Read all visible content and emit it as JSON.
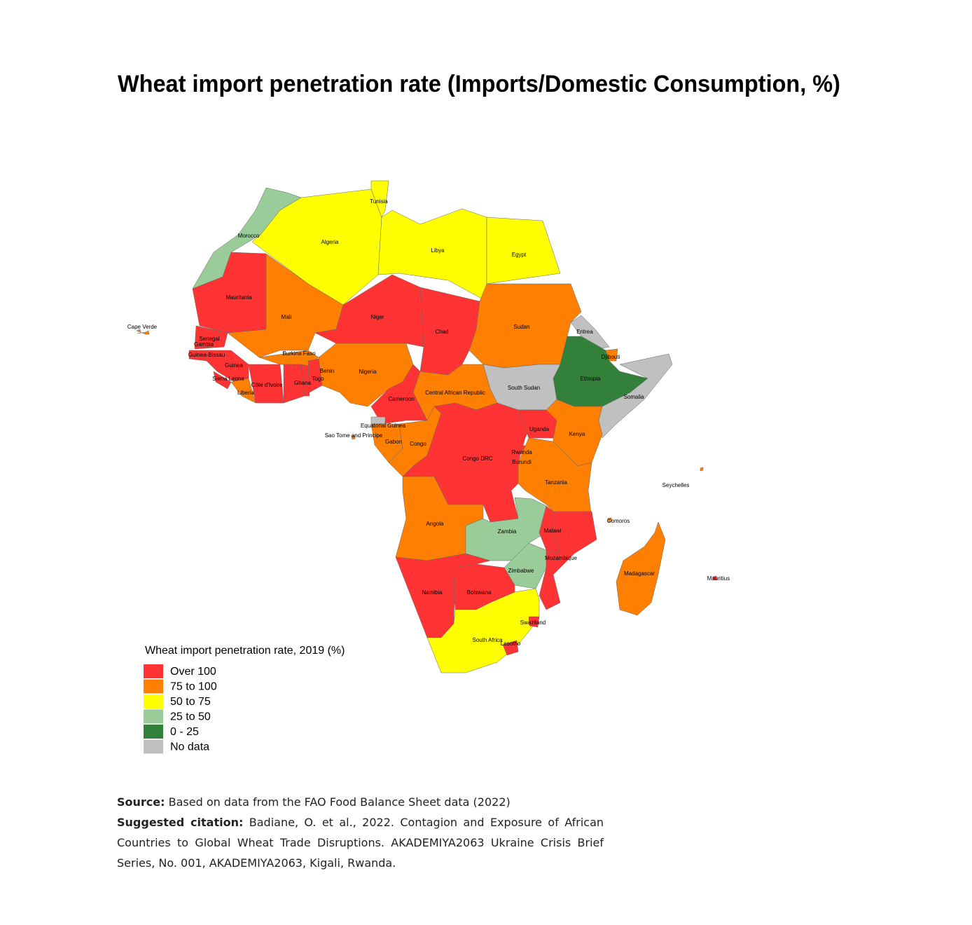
{
  "title": "Wheat import penetration rate (Imports/Domestic Consumption, %)",
  "legend": {
    "title": "Wheat import penetration rate, 2019 (%)",
    "items": [
      {
        "label": "Over 100",
        "color": "#ff3333"
      },
      {
        "label": "75 to 100",
        "color": "#ff7f00"
      },
      {
        "label": "50 to 75",
        "color": "#ffff00"
      },
      {
        "label": "25 to 50",
        "color": "#99cc99"
      },
      {
        "label": "0 - 25",
        "color": "#33803a"
      },
      {
        "label": "No data",
        "color": "#c0c0c0"
      }
    ]
  },
  "countries": [
    {
      "name": "Morocco",
      "category": "25 to 50"
    },
    {
      "name": "Algeria",
      "category": "50 to 75"
    },
    {
      "name": "Tunisia",
      "category": "50 to 75"
    },
    {
      "name": "Libya",
      "category": "50 to 75"
    },
    {
      "name": "Egypt",
      "category": "50 to 75"
    },
    {
      "name": "Mauritania",
      "category": "Over 100"
    },
    {
      "name": "Mali",
      "category": "75 to 100"
    },
    {
      "name": "Niger",
      "category": "Over 100"
    },
    {
      "name": "Chad",
      "category": "Over 100"
    },
    {
      "name": "Sudan",
      "category": "75 to 100"
    },
    {
      "name": "Eritrea",
      "category": "No data"
    },
    {
      "name": "Ethiopia",
      "category": "0 - 25"
    },
    {
      "name": "Djibouti",
      "category": "75 to 100"
    },
    {
      "name": "Somalia",
      "category": "No data"
    },
    {
      "name": "South Sudan",
      "category": "No data"
    },
    {
      "name": "Senegal",
      "category": "Over 100"
    },
    {
      "name": "Gambia",
      "category": "Over 100"
    },
    {
      "name": "Guinea-Bissau",
      "category": "Over 100"
    },
    {
      "name": "Guinea",
      "category": "Over 100"
    },
    {
      "name": "Sierra Leone",
      "category": "Over 100"
    },
    {
      "name": "Liberia",
      "category": "75 to 100"
    },
    {
      "name": "Côte d'Ivoire",
      "category": "Over 100"
    },
    {
      "name": "Burkina Faso",
      "category": "75 to 100"
    },
    {
      "name": "Ghana",
      "category": "Over 100"
    },
    {
      "name": "Togo",
      "category": "Over 100"
    },
    {
      "name": "Benin",
      "category": "Over 100"
    },
    {
      "name": "Nigeria",
      "category": "75 to 100"
    },
    {
      "name": "Cameroon",
      "category": "Over 100"
    },
    {
      "name": "Central African Republic",
      "category": "75 to 100"
    },
    {
      "name": "Equatorial Guinea",
      "category": "No data"
    },
    {
      "name": "Gabon",
      "category": "75 to 100"
    },
    {
      "name": "Congo",
      "category": "75 to 100"
    },
    {
      "name": "Congo DRC",
      "category": "Over 100"
    },
    {
      "name": "Uganda",
      "category": "Over 100"
    },
    {
      "name": "Kenya",
      "category": "75 to 100"
    },
    {
      "name": "Rwanda",
      "category": "Over 100"
    },
    {
      "name": "Burundi",
      "category": "Over 100"
    },
    {
      "name": "Tanzania",
      "category": "75 to 100"
    },
    {
      "name": "Angola",
      "category": "75 to 100"
    },
    {
      "name": "Zambia",
      "category": "25 to 50"
    },
    {
      "name": "Malawi",
      "category": "Over 100"
    },
    {
      "name": "Mozambique",
      "category": "Over 100"
    },
    {
      "name": "Zimbabwe",
      "category": "25 to 50"
    },
    {
      "name": "Namibia",
      "category": "Over 100"
    },
    {
      "name": "Botswana",
      "category": "Over 100"
    },
    {
      "name": "South Africa",
      "category": "50 to 75"
    },
    {
      "name": "Lesotho",
      "category": "Over 100"
    },
    {
      "name": "Swaziland",
      "category": "Over 100"
    },
    {
      "name": "Madagascar",
      "category": "75 to 100"
    },
    {
      "name": "Cape Verde",
      "category": "75 to 100"
    },
    {
      "name": "Sao Tome and Principe",
      "category": "75 to 100"
    },
    {
      "name": "Comoros",
      "category": "75 to 100"
    },
    {
      "name": "Seychelles",
      "category": "75 to 100"
    },
    {
      "name": "Mauritius",
      "category": "Over 100"
    }
  ],
  "notes": {
    "source_label": "Source:",
    "source_text": "Based on data from the FAO Food Balance Sheet data (2022)",
    "citation_label": "Suggested citation:",
    "citation_text": "Badiane, O. et al., 2022. Contagion and Exposure of African Countries to Global Wheat Trade Disruptions. AKADEMIYA2063 Ukraine Crisis Brief Series, No. 001, AKADEMIYA2063, Kigali, Rwanda."
  }
}
